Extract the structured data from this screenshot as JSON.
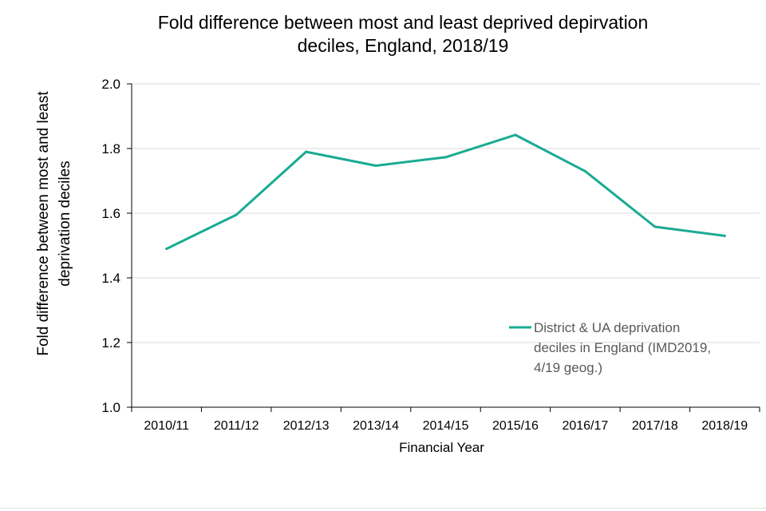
{
  "chart_data": {
    "type": "line",
    "title_lines": [
      "Fold difference between most and least deprived depirvation",
      "deciles, England, 2018/19"
    ],
    "xlabel": "Financial Year",
    "ylabel_lines": [
      "Fold difference between most and least",
      "deprivation deciles"
    ],
    "categories": [
      "2010/11",
      "2011/12",
      "2012/13",
      "2013/14",
      "2014/15",
      "2015/16",
      "2016/17",
      "2017/18",
      "2018/19"
    ],
    "series": [
      {
        "name": "District & UA deprivation deciles in England (IMD2019, 4/19 geog.)",
        "legend_lines": [
          "District & UA deprivation",
          "deciles in England (IMD2019,",
          "4/19 geog.)"
        ],
        "values": [
          1.49,
          1.595,
          1.79,
          1.747,
          1.773,
          1.842,
          1.73,
          1.558,
          1.53
        ],
        "color": "#1aab93"
      }
    ],
    "ylim": [
      1.0,
      2.0
    ],
    "yticks": [
      "1.0",
      "1.2",
      "1.4",
      "1.6",
      "1.8",
      "2.0"
    ],
    "grid": true,
    "legend_position": "right"
  }
}
